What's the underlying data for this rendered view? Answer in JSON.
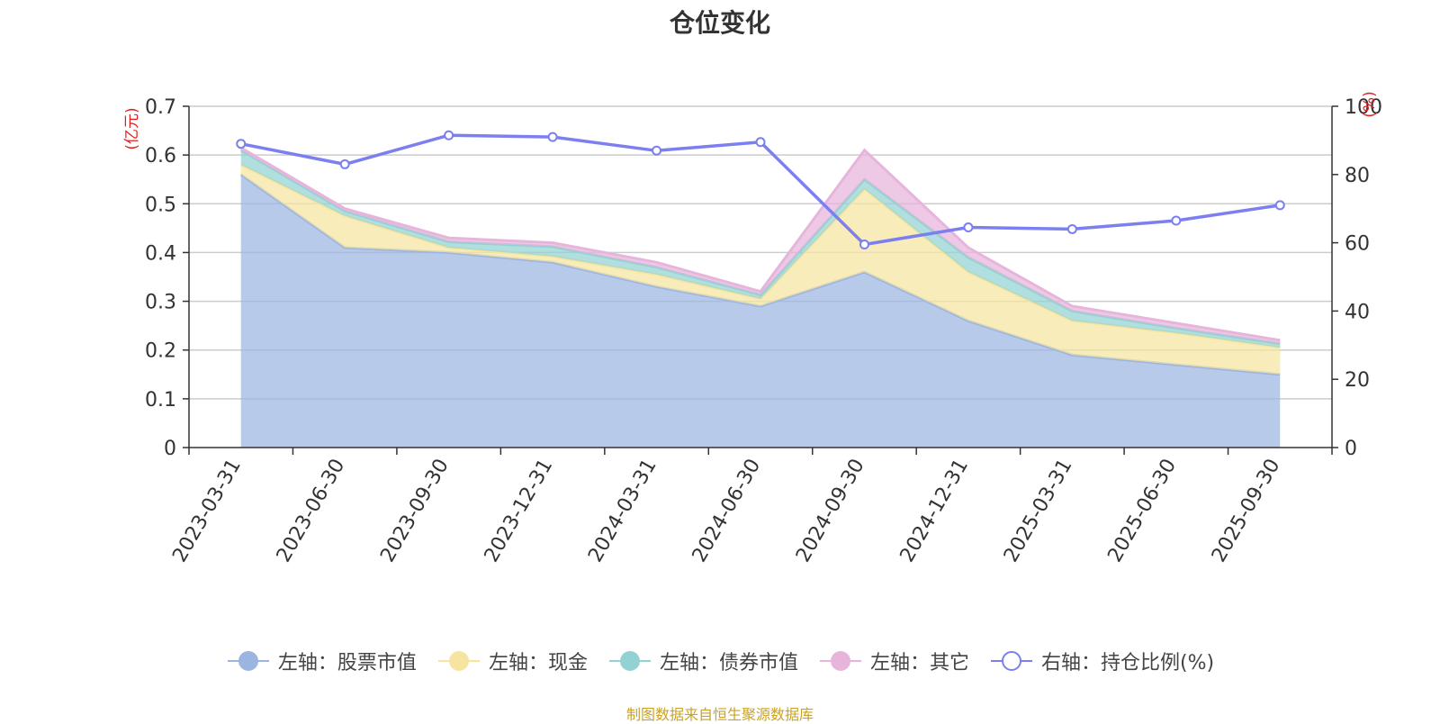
{
  "title": "仓位变化",
  "source": "制图数据来自恒生聚源数据库",
  "chart_data": {
    "type": "area",
    "title": "仓位变化",
    "categories": [
      "2023-03-31",
      "2023-06-30",
      "2023-09-30",
      "2023-12-31",
      "2024-03-31",
      "2024-06-30",
      "2024-09-30",
      "2024-12-31",
      "2025-03-31",
      "2025-06-30",
      "2025-09-30"
    ],
    "y_left": {
      "label": "(亿元)",
      "range": [
        0,
        0.7
      ],
      "ticks": [
        "0",
        "0.1",
        "0.2",
        "0.3",
        "0.4",
        "0.5",
        "0.6",
        "0.7"
      ]
    },
    "y_right": {
      "label": "(%)",
      "range": [
        0,
        100
      ],
      "ticks": [
        "0",
        "20",
        "40",
        "60",
        "80",
        "100"
      ]
    },
    "stacked": true,
    "grid": true,
    "legend_position": "bottom",
    "series": [
      {
        "name": "左轴：股票市值",
        "axis": "left",
        "type": "area",
        "color": "#9bb5e0",
        "values": [
          0.56,
          0.41,
          0.4,
          0.38,
          0.33,
          0.29,
          0.36,
          0.26,
          0.19,
          0.17,
          0.15
        ]
      },
      {
        "name": "左轴：现金",
        "axis": "left",
        "type": "area",
        "color": "#f6e5a1",
        "values": [
          0.02,
          0.065,
          0.01,
          0.012,
          0.025,
          0.015,
          0.17,
          0.1,
          0.07,
          0.065,
          0.055
        ]
      },
      {
        "name": "左轴：债券市值",
        "axis": "left",
        "type": "area",
        "color": "#93d2d2",
        "values": [
          0.03,
          0.01,
          0.012,
          0.02,
          0.015,
          0.008,
          0.02,
          0.03,
          0.02,
          0.01,
          0.008
        ]
      },
      {
        "name": "左轴：其它",
        "axis": "left",
        "type": "area",
        "color": "#e7b4dc",
        "values": [
          0.005,
          0.005,
          0.008,
          0.008,
          0.01,
          0.007,
          0.06,
          0.02,
          0.01,
          0.01,
          0.007
        ]
      },
      {
        "name": "右轴：持仓比例(%)",
        "axis": "right",
        "type": "line",
        "color": "#7b7ff0",
        "values": [
          89,
          83,
          91.5,
          91,
          87,
          89.5,
          59.5,
          64.5,
          64,
          66.5,
          71
        ]
      }
    ]
  }
}
